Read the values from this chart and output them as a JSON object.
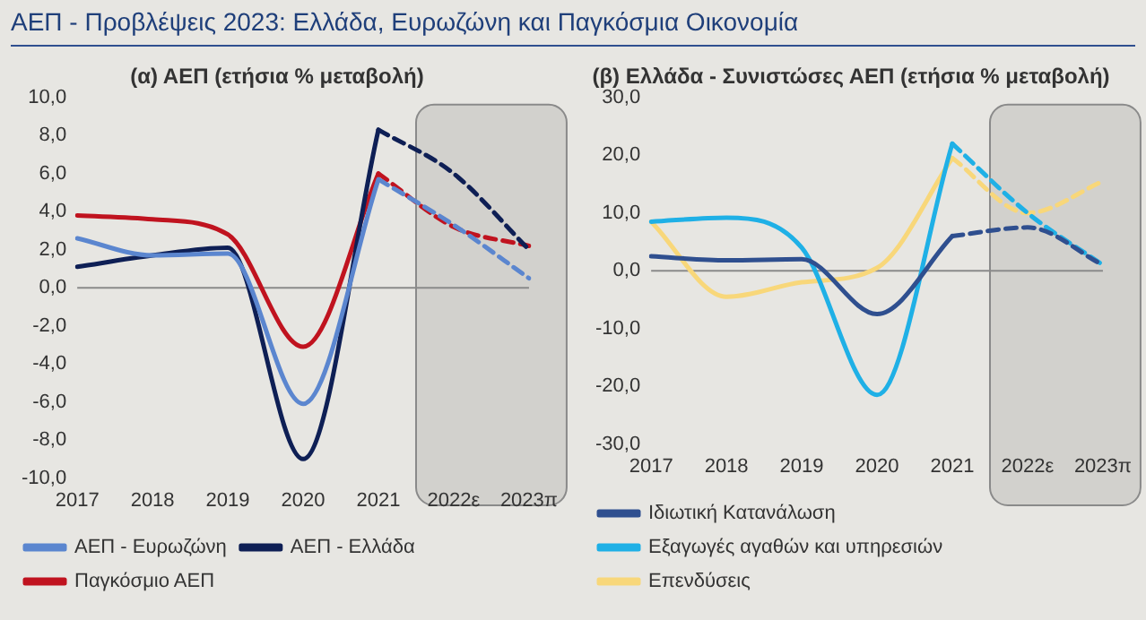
{
  "chart_data": [
    {
      "type": "line",
      "annotations": [
        "ΑΕΠ - Προβλέψεις 2023: Ελλάδα, Ευρωζώνη και Παγκόσμια Οικονομία"
      ],
      "title": "(α) ΑΕΠ (ετήσια % μεταβολή)",
      "categories": [
        "2017",
        "2018",
        "2019",
        "2020",
        "2021",
        "2022ε",
        "2023π"
      ],
      "series": [
        {
          "name": "ΑΕΠ - Ευρωζώνη",
          "color": "#5b86cf",
          "values": [
            2.6,
            1.7,
            1.8,
            -6.1,
            5.7,
            null,
            null
          ]
        },
        {
          "name": "ΑΕΠ - Ελλάδα",
          "color": "#0e1f55",
          "values": [
            1.1,
            1.7,
            2.1,
            -9.0,
            8.3,
            null,
            null
          ]
        },
        {
          "name": "Παγκόσμιο ΑΕΠ",
          "color": "#c0131f",
          "values": [
            3.8,
            3.6,
            2.8,
            -3.1,
            6.0,
            null,
            null
          ]
        },
        {
          "color": "#5b86cf",
          "line_style": "dashed",
          "values": [
            null,
            null,
            null,
            null,
            5.7,
            3.3,
            0.5
          ]
        },
        {
          "color": "#0e1f55",
          "line_style": "dashed",
          "values": [
            null,
            null,
            null,
            null,
            8.3,
            6.0,
            2.0
          ]
        },
        {
          "color": "#c0131f",
          "line_style": "dashed",
          "values": [
            null,
            null,
            null,
            null,
            6.0,
            3.2,
            2.2
          ]
        }
      ],
      "ylim": [
        -10,
        10
      ],
      "yticks": [
        {
          "value": -10,
          "label": "-10,0"
        },
        {
          "value": -8,
          "label": "-8,0"
        },
        {
          "value": -6,
          "label": "-6,0"
        },
        {
          "value": -4,
          "label": "-4,0"
        },
        {
          "value": -2,
          "label": "-2,0"
        },
        {
          "value": 0,
          "label": "0,0"
        },
        {
          "value": 2,
          "label": "2,0"
        },
        {
          "value": 4,
          "label": "4,0"
        },
        {
          "value": 6,
          "label": "6,0"
        },
        {
          "value": 8,
          "label": "8,0"
        },
        {
          "value": 10,
          "label": "10,0"
        }
      ],
      "grid": false,
      "legend": "bottom",
      "marker": "none",
      "ref_lines": [
        {
          "axis": "y",
          "value": 0,
          "color": "#8a8a8a"
        }
      ],
      "bands": [
        {
          "axis": "x",
          "from": "2022ε",
          "to": "2023π",
          "color": "#d2d1cd"
        }
      ]
    },
    {
      "type": "line",
      "title": "(β) Ελλάδα - Συνιστώσες ΑΕΠ (ετήσια % μεταβολή)",
      "categories": [
        "2017",
        "2018",
        "2019",
        "2020",
        "2021",
        "2022ε",
        "2023π"
      ],
      "series": [
        {
          "name": "Ιδιωτική Κατανάλωση",
          "color": "#2f4f8f",
          "values": [
            2.5,
            1.8,
            2.0,
            -7.5,
            6.0,
            null,
            null
          ]
        },
        {
          "name": "Εξαγωγές αγαθών και υπηρεσιών",
          "color": "#1fb0e6",
          "values": [
            8.5,
            9.2,
            4.0,
            -21.5,
            22.0,
            null,
            null
          ]
        },
        {
          "name": "Επενδύσεις",
          "color": "#f8d77a",
          "values": [
            8.5,
            -4.5,
            -2.0,
            0.5,
            19.5,
            null,
            null
          ]
        },
        {
          "color": "#2f4f8f",
          "line_style": "dashed",
          "values": [
            null,
            null,
            null,
            null,
            6.0,
            7.5,
            1.0
          ]
        },
        {
          "color": "#1fb0e6",
          "line_style": "dashed",
          "values": [
            null,
            null,
            null,
            null,
            22.0,
            10.0,
            1.0
          ]
        },
        {
          "color": "#f8d77a",
          "line_style": "dashed",
          "values": [
            null,
            null,
            null,
            null,
            19.5,
            10.0,
            15.5
          ]
        }
      ],
      "ylim": [
        -30,
        30
      ],
      "yticks": [
        {
          "value": -30,
          "label": "-30,0"
        },
        {
          "value": -20,
          "label": "-20,0"
        },
        {
          "value": -10,
          "label": "-10,0"
        },
        {
          "value": 0,
          "label": "0,0"
        },
        {
          "value": 10,
          "label": "10,0"
        },
        {
          "value": 20,
          "label": "20,0"
        },
        {
          "value": 30,
          "label": "30,0"
        }
      ],
      "grid": false,
      "legend": "bottom",
      "marker": "none",
      "ref_lines": [
        {
          "axis": "y",
          "value": 0,
          "color": "#8a8a8a"
        }
      ],
      "bands": [
        {
          "axis": "x",
          "from": "2022ε",
          "to": "2023π",
          "color": "#d2d1cd"
        }
      ]
    }
  ]
}
